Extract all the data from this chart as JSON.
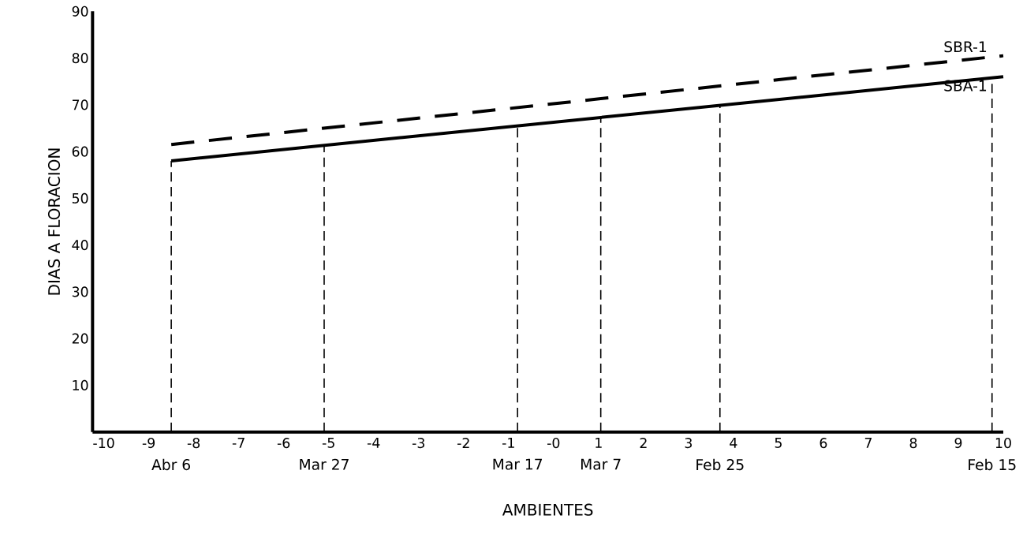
{
  "chart_data": {
    "type": "line",
    "xlabel": "AMBIENTES",
    "ylabel": "DIAS A FLORACION",
    "xlim": [
      -10.25,
      10
    ],
    "ylim": [
      0,
      90
    ],
    "xticks": [
      -10,
      -9,
      -8,
      -7,
      -6,
      -5,
      -4,
      -3,
      -2,
      -1,
      {
        "value": 0,
        "label": "-0"
      },
      1,
      2,
      3,
      4,
      5,
      6,
      7,
      8,
      9,
      10
    ],
    "yticks": [
      10,
      20,
      30,
      40,
      50,
      60,
      70,
      80,
      90
    ],
    "x": [
      -8.5,
      10
    ],
    "grid": false,
    "legend": false,
    "marker": "none",
    "series": [
      {
        "name": "SBR-1",
        "color": "#000000",
        "line_style": "dashed",
        "values": [
          61.5,
          80.5
        ]
      },
      {
        "name": "SBA-1",
        "color": "#000000",
        "line_style": "solid",
        "values": [
          58,
          76
        ]
      }
    ],
    "ref_lines": [
      {
        "axis": "x",
        "value": -8.5,
        "label": "Abr 6",
        "line_style": "dashed"
      },
      {
        "axis": "x",
        "value": -5.1,
        "label": "Mar 27",
        "line_style": "dashed"
      },
      {
        "axis": "x",
        "value": -0.8,
        "label": "Mar 17",
        "line_style": "dashed"
      },
      {
        "axis": "x",
        "value": 1.05,
        "label": "Mar 7",
        "line_style": "dashed"
      },
      {
        "axis": "x",
        "value": 3.7,
        "label": "Feb 25",
        "line_style": "dashed"
      },
      {
        "axis": "x",
        "value": 9.75,
        "label": "Feb 15",
        "line_style": "dashed"
      }
    ]
  }
}
